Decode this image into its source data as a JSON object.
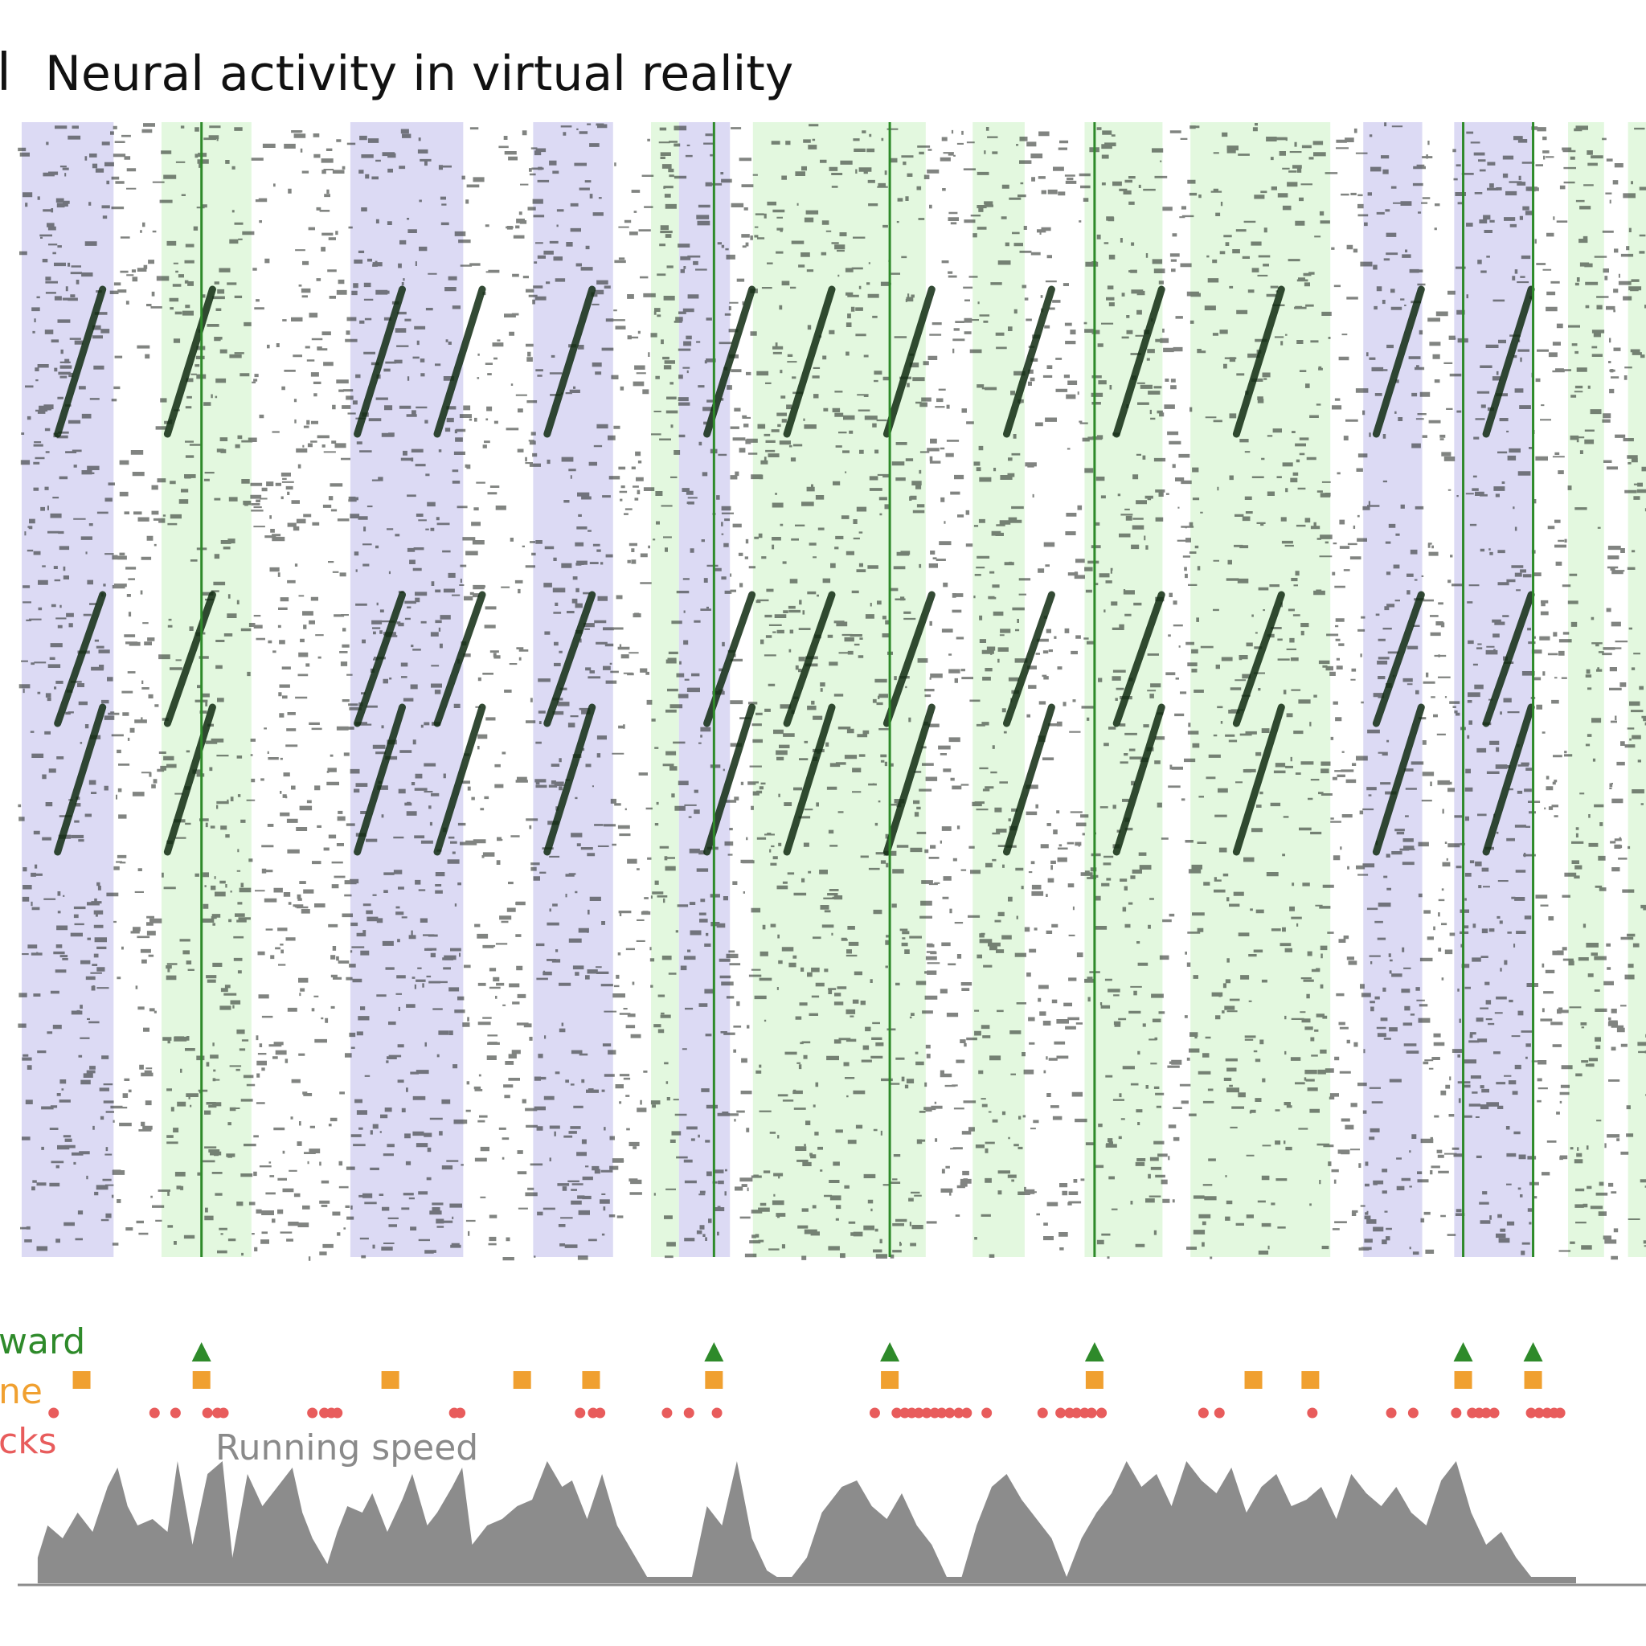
{
  "panel_letter": "l",
  "title": "Neural activity in virtual reality",
  "colors": {
    "grey_region": "#dcdaf4",
    "green_region": "#e3f8df",
    "reward": "#2e8a2a",
    "cue": "#f0a030",
    "licks": "#e85c5c",
    "speed": "#8c8c8c",
    "label_grey": "#8a8a8a"
  },
  "chart_data": {
    "type": "heatmap",
    "description_free": true,
    "regions": [
      {
        "kind": "grey",
        "x0": 0.04,
        "x1": 0.96
      },
      {
        "kind": "green",
        "x0": 1.44,
        "x1": 2.34
      },
      {
        "kind": "grey",
        "x0": 3.33,
        "x1": 4.46
      },
      {
        "kind": "grey",
        "x0": 5.16,
        "x1": 5.96
      },
      {
        "kind": "green",
        "x0": 6.34,
        "x1": 6.62
      },
      {
        "kind": "grey",
        "x0": 6.62,
        "x1": 7.13
      },
      {
        "kind": "green",
        "x0": 7.36,
        "x1": 9.09
      },
      {
        "kind": "green",
        "x0": 9.56,
        "x1": 10.08
      },
      {
        "kind": "green",
        "x0": 10.68,
        "x1": 11.46
      },
      {
        "kind": "green",
        "x0": 11.74,
        "x1": 13.14
      },
      {
        "kind": "grey",
        "x0": 13.47,
        "x1": 14.06
      },
      {
        "kind": "grey",
        "x0": 14.38,
        "x1": 15.16
      },
      {
        "kind": "green",
        "x0": 15.52,
        "x1": 15.88
      },
      {
        "kind": "green",
        "x0": 16.12,
        "x1": 16.3
      }
    ],
    "reward_times": [
      1.84,
      6.97,
      8.73,
      10.78,
      14.47,
      15.17
    ],
    "cue_times": [
      0.64,
      1.84,
      3.73,
      5.05,
      5.74,
      6.97,
      8.73,
      10.78,
      12.37,
      12.94,
      14.47,
      15.17
    ],
    "lick_times": [
      0.36,
      1.37,
      1.58,
      1.9,
      2.0,
      2.06,
      2.95,
      3.07,
      3.14,
      3.2,
      4.37,
      4.43,
      5.63,
      5.76,
      5.83,
      6.5,
      6.72,
      7.0,
      8.58,
      8.8,
      8.88,
      8.95,
      9.02,
      9.1,
      9.18,
      9.25,
      9.33,
      9.42,
      9.5,
      9.7,
      10.26,
      10.44,
      10.53,
      10.6,
      10.68,
      10.75,
      10.85,
      11.87,
      12.03,
      12.96,
      13.75,
      13.97,
      14.4,
      14.56,
      14.63,
      14.7,
      14.78,
      15.15,
      15.23,
      15.31,
      15.38,
      15.44
    ],
    "running_speed": {
      "t": [
        0.2,
        0.3,
        0.45,
        0.6,
        0.75,
        0.9,
        1.0,
        1.1,
        1.2,
        1.35,
        1.5,
        1.6,
        1.75,
        1.9,
        2.05,
        2.15,
        2.3,
        2.45,
        2.6,
        2.75,
        2.85,
        2.95,
        3.1,
        3.2,
        3.3,
        3.45,
        3.55,
        3.7,
        3.85,
        3.95,
        4.1,
        4.2,
        4.35,
        4.45,
        4.55,
        4.7,
        4.85,
        5.0,
        5.15,
        5.3,
        5.45,
        5.55,
        5.7,
        5.85,
        6.0,
        6.15,
        6.3,
        6.45,
        6.6,
        6.75,
        6.9,
        7.05,
        7.2,
        7.35,
        7.5,
        7.6,
        7.75,
        7.9,
        8.05,
        8.15,
        8.25,
        8.4,
        8.55,
        8.7,
        8.85,
        9.0,
        9.15,
        9.3,
        9.45,
        9.6,
        9.75,
        9.9,
        10.05,
        10.2,
        10.35,
        10.5,
        10.65,
        10.8,
        10.95,
        11.1,
        11.25,
        11.4,
        11.55,
        11.7,
        11.85,
        12.0,
        12.15,
        12.3,
        12.45,
        12.6,
        12.75,
        12.9,
        13.05,
        13.2,
        13.35,
        13.5,
        13.65,
        13.8,
        13.95,
        14.1,
        14.25,
        14.4,
        14.55,
        14.7,
        14.85,
        15.0,
        15.15,
        15.3,
        15.45,
        15.6
      ],
      "v": [
        0.2,
        0.45,
        0.35,
        0.55,
        0.4,
        0.75,
        0.9,
        0.6,
        0.45,
        0.5,
        0.4,
        0.95,
        0.3,
        0.85,
        0.95,
        0.2,
        0.85,
        0.6,
        0.75,
        0.9,
        0.55,
        0.35,
        0.15,
        0.4,
        0.6,
        0.55,
        0.7,
        0.4,
        0.65,
        0.85,
        0.45,
        0.55,
        0.75,
        0.9,
        0.3,
        0.45,
        0.5,
        0.6,
        0.65,
        0.95,
        0.75,
        0.8,
        0.5,
        0.85,
        0.45,
        0.25,
        0.05,
        0.05,
        0.05,
        0.05,
        0.6,
        0.45,
        0.95,
        0.35,
        0.1,
        0.05,
        0.05,
        0.2,
        0.55,
        0.65,
        0.75,
        0.8,
        0.6,
        0.5,
        0.7,
        0.45,
        0.3,
        0.05,
        0.05,
        0.45,
        0.75,
        0.85,
        0.65,
        0.5,
        0.35,
        0.05,
        0.35,
        0.55,
        0.7,
        0.95,
        0.75,
        0.85,
        0.6,
        0.95,
        0.8,
        0.7,
        0.9,
        0.55,
        0.75,
        0.85,
        0.6,
        0.65,
        0.75,
        0.5,
        0.85,
        0.7,
        0.6,
        0.75,
        0.55,
        0.45,
        0.8,
        0.95,
        0.55,
        0.3,
        0.4,
        0.2,
        0.05,
        0.05,
        0.05,
        0.05
      ]
    },
    "x_range": [
      0,
      16.3
    ],
    "legend": [
      {
        "label": "ward",
        "color_key": "reward"
      },
      {
        "label": "ne",
        "color_key": "cue"
      },
      {
        "label": "cks",
        "color_key": "licks"
      }
    ],
    "speed_label": "Running speed"
  }
}
